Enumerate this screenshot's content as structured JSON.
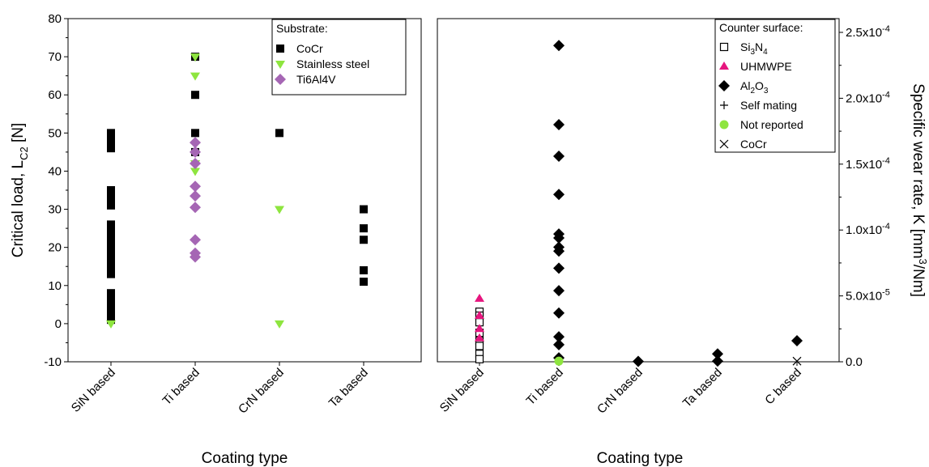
{
  "chart_data": [
    {
      "type": "scatter",
      "xlabel": "Coating type",
      "ylabel": "Critical load, L",
      "ylabel_sub": "C2",
      "ylabel_unit": " [N]",
      "ylim": [
        -10,
        80
      ],
      "yticks": [
        "80",
        "70",
        "60",
        "50",
        "40",
        "30",
        "20",
        "10",
        "0",
        "-10"
      ],
      "categories": [
        "SiN based",
        "Ti based",
        "CrN based",
        "Ta based"
      ],
      "legend": {
        "title": "Substrate:",
        "position": "top-right"
      },
      "series": [
        {
          "name": "CoCr",
          "marker": "square",
          "color": "#000000",
          "points": [
            [
              "SiN based",
              50
            ],
            [
              "SiN based",
              49
            ],
            [
              "SiN based",
              48
            ],
            [
              "SiN based",
              47
            ],
            [
              "SiN based",
              46
            ],
            [
              "SiN based",
              35
            ],
            [
              "SiN based",
              34
            ],
            [
              "SiN based",
              33
            ],
            [
              "SiN based",
              31
            ],
            [
              "SiN based",
              26
            ],
            [
              "SiN based",
              25
            ],
            [
              "SiN based",
              24
            ],
            [
              "SiN based",
              23
            ],
            [
              "SiN based",
              22
            ],
            [
              "SiN based",
              21
            ],
            [
              "SiN based",
              20
            ],
            [
              "SiN based",
              18
            ],
            [
              "SiN based",
              17
            ],
            [
              "SiN based",
              16
            ],
            [
              "SiN based",
              15
            ],
            [
              "SiN based",
              14
            ],
            [
              "SiN based",
              13
            ],
            [
              "SiN based",
              8
            ],
            [
              "SiN based",
              7
            ],
            [
              "SiN based",
              5
            ],
            [
              "SiN based",
              3
            ],
            [
              "SiN based",
              2
            ],
            [
              "SiN based",
              1
            ],
            [
              "Ti based",
              70
            ],
            [
              "Ti based",
              60
            ],
            [
              "Ti based",
              50
            ],
            [
              "Ti based",
              45
            ],
            [
              "CrN based",
              50
            ],
            [
              "Ta based",
              30
            ],
            [
              "Ta based",
              25
            ],
            [
              "Ta based",
              22
            ],
            [
              "Ta based",
              14
            ],
            [
              "Ta based",
              11
            ]
          ]
        },
        {
          "name": "Stainless steel",
          "marker": "triangle-down",
          "color": "#8ee53f",
          "points": [
            [
              "SiN based",
              0
            ],
            [
              "Ti based",
              70
            ],
            [
              "Ti based",
              65
            ],
            [
              "Ti based",
              42
            ],
            [
              "Ti based",
              40
            ],
            [
              "CrN based",
              30
            ],
            [
              "CrN based",
              0
            ]
          ]
        },
        {
          "name": "Ti6Al4V",
          "marker": "diamond",
          "color": "#a566b4",
          "points": [
            [
              "Ti based",
              47.5
            ],
            [
              "Ti based",
              45
            ],
            [
              "Ti based",
              42
            ],
            [
              "Ti based",
              36
            ],
            [
              "Ti based",
              33.5
            ],
            [
              "Ti based",
              30.5
            ],
            [
              "Ti based",
              22
            ],
            [
              "Ti based",
              18.5
            ],
            [
              "Ti based",
              17.5
            ]
          ]
        }
      ]
    },
    {
      "type": "scatter",
      "xlabel": "Coating type",
      "ylabel": "Specific wear rate, K [mm",
      "ylabel_sup": "3",
      "ylabel_unit": "/Nm]",
      "ylim": [
        0,
        0.00025
      ],
      "yticks": [
        {
          "v": 0,
          "label": "0.0"
        },
        {
          "v": 5e-05,
          "label": "5.0x10",
          "exp": "-5"
        },
        {
          "v": 0.0001,
          "label": "1.0x10",
          "exp": "-4"
        },
        {
          "v": 0.00015,
          "label": "1.5x10",
          "exp": "-4"
        },
        {
          "v": 0.0002,
          "label": "2.0x10",
          "exp": "-4"
        },
        {
          "v": 0.00025,
          "label": "2.5x10",
          "exp": "-4"
        }
      ],
      "categories": [
        "SiN based",
        "Ti based",
        "CrN based",
        "Ta based",
        "C based"
      ],
      "legend": {
        "title": "Counter surface:",
        "position": "top-right"
      },
      "series": [
        {
          "name": "Si",
          "name_parts": [
            "Si",
            "3",
            "N",
            "4"
          ],
          "marker": "open-square",
          "color": "#000000",
          "points": [
            [
              "SiN based",
              3.8e-05
            ],
            [
              "SiN based",
              3.5e-05
            ],
            [
              "SiN based",
              3e-05
            ],
            [
              "SiN based",
              2.2e-05
            ],
            [
              "SiN based",
              1.6e-05
            ],
            [
              "SiN based",
              1.2e-05
            ],
            [
              "SiN based",
              6e-06
            ],
            [
              "SiN based",
              2e-06
            ]
          ]
        },
        {
          "name": "UHMWPE",
          "marker": "triangle-up",
          "color": "#e6157e",
          "points": [
            [
              "SiN based",
              4.8e-05
            ],
            [
              "SiN based",
              3.5e-05
            ],
            [
              "SiN based",
              2.5e-05
            ],
            [
              "SiN based",
              1.8e-05
            ]
          ]
        },
        {
          "name": "Al",
          "name_parts": [
            "Al",
            "2",
            "O",
            "3"
          ],
          "marker": "diamond",
          "color": "#000000",
          "points": [
            [
              "Ti based",
              0.00024
            ],
            [
              "Ti based",
              0.00018
            ],
            [
              "Ti based",
              0.000156
            ],
            [
              "Ti based",
              0.000127
            ],
            [
              "Ti based",
              9.7e-05
            ],
            [
              "Ti based",
              9.4e-05
            ],
            [
              "Ti based",
              8.7e-05
            ],
            [
              "Ti based",
              8.4e-05
            ],
            [
              "Ti based",
              7.1e-05
            ],
            [
              "Ti based",
              5.4e-05
            ],
            [
              "Ti based",
              3.7e-05
            ],
            [
              "Ti based",
              1.9e-05
            ],
            [
              "Ti based",
              1.3e-05
            ],
            [
              "Ti based",
              3e-06
            ],
            [
              "CrN based",
              3e-07
            ],
            [
              "Ta based",
              6e-06
            ],
            [
              "Ta based",
              5e-07
            ],
            [
              "C based",
              1.6e-05
            ]
          ]
        },
        {
          "name": "Self mating",
          "marker": "plus",
          "color": "#000000",
          "points": [
            [
              "Ti based",
              1e-06
            ]
          ]
        },
        {
          "name": "Not reported",
          "marker": "circle",
          "color": "#8ee53f",
          "points": [
            [
              "Ti based",
              5e-07
            ]
          ]
        },
        {
          "name": "CoCr",
          "marker": "x",
          "color": "#000000",
          "points": [
            [
              "C based",
              5e-07
            ]
          ]
        }
      ]
    }
  ]
}
